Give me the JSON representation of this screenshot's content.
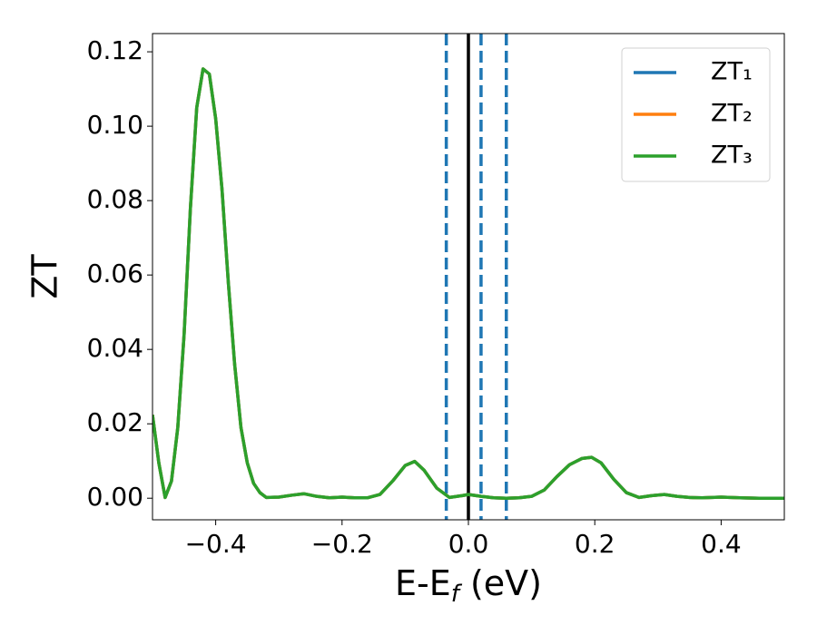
{
  "chart_data": {
    "type": "line",
    "xlabel": [
      "E-E",
      "f",
      " (eV)"
    ],
    "ylabel": "ZT",
    "xlim": [
      -0.5,
      0.5
    ],
    "ylim": [
      -0.0058,
      0.1249
    ],
    "xticks": [
      {
        "value": -0.4,
        "label": "−0.4"
      },
      {
        "value": -0.2,
        "label": "−0.2"
      },
      {
        "value": 0,
        "label": "0.0"
      },
      0.2,
      0.4
    ],
    "yticks": [
      {
        "value": 0,
        "label": "0.00"
      },
      0.02,
      0.04,
      0.06,
      0.08,
      {
        "value": 0.1,
        "label": "0.10"
      },
      0.12
    ],
    "x": [
      -0.5,
      -0.49,
      -0.48,
      -0.47,
      -0.46,
      -0.45,
      -0.44,
      -0.43,
      -0.42,
      -0.41,
      -0.4,
      -0.39,
      -0.38,
      -0.37,
      -0.36,
      -0.35,
      -0.34,
      -0.33,
      -0.32,
      -0.3,
      -0.28,
      -0.26,
      -0.24,
      -0.22,
      -0.2,
      -0.18,
      -0.16,
      -0.14,
      -0.12,
      -0.1,
      -0.085,
      -0.07,
      -0.05,
      -0.03,
      -0.01,
      0,
      0.02,
      0.04,
      0.06,
      0.08,
      0.1,
      0.12,
      0.14,
      0.16,
      0.18,
      0.195,
      0.21,
      0.23,
      0.25,
      0.27,
      0.29,
      0.31,
      0.33,
      0.35,
      0.37,
      0.4,
      0.43,
      0.46,
      0.5
    ],
    "series": [
      {
        "name": "ZT₁",
        "color": "#1f77b4",
        "values": [
          0.0224,
          0.0095,
          0.0002,
          0.0046,
          0.019,
          0.044,
          0.078,
          0.105,
          0.1154,
          0.114,
          0.102,
          0.083,
          0.058,
          0.036,
          0.019,
          0.0095,
          0.004,
          0.0015,
          0.0002,
          0.0003,
          0.0008,
          0.0012,
          0.0005,
          0.0001,
          0.0003,
          0.0001,
          0.0001,
          0.001,
          0.0046,
          0.0088,
          0.0099,
          0.0075,
          0.0027,
          0.0002,
          0.0007,
          0.001,
          0.0005,
          0.0001,
          0,
          0.0001,
          0.0005,
          0.0022,
          0.0058,
          0.009,
          0.0107,
          0.011,
          0.0095,
          0.0051,
          0.0015,
          0.0002,
          0.0007,
          0.001,
          0.0005,
          0.0002,
          0.0001,
          0.0003,
          0.0001,
          0,
          0
        ]
      },
      {
        "name": "ZT₂",
        "color": "#ff7f0e",
        "values": [
          0.0224,
          0.0095,
          0.0002,
          0.0046,
          0.019,
          0.044,
          0.078,
          0.105,
          0.1154,
          0.114,
          0.102,
          0.083,
          0.058,
          0.036,
          0.019,
          0.0095,
          0.004,
          0.0015,
          0.0002,
          0.0003,
          0.0008,
          0.0012,
          0.0005,
          0.0001,
          0.0003,
          0.0001,
          0.0001,
          0.001,
          0.0046,
          0.0088,
          0.0099,
          0.0075,
          0.0027,
          0.0002,
          0.0007,
          0.001,
          0.0005,
          0.0001,
          0,
          0.0001,
          0.0005,
          0.0022,
          0.0058,
          0.009,
          0.0107,
          0.011,
          0.0095,
          0.0051,
          0.0015,
          0.0002,
          0.0007,
          0.001,
          0.0005,
          0.0002,
          0.0001,
          0.0003,
          0.0001,
          0,
          0
        ]
      },
      {
        "name": "ZT₃",
        "color": "#2ca02c",
        "values": [
          0.0224,
          0.0095,
          0.0002,
          0.0046,
          0.019,
          0.044,
          0.078,
          0.105,
          0.1154,
          0.114,
          0.102,
          0.083,
          0.058,
          0.036,
          0.019,
          0.0095,
          0.004,
          0.0015,
          0.0002,
          0.0003,
          0.0008,
          0.0012,
          0.0005,
          0.0001,
          0.0003,
          0.0001,
          0.0001,
          0.001,
          0.0046,
          0.0088,
          0.0099,
          0.0075,
          0.0027,
          0.0002,
          0.0007,
          0.001,
          0.0005,
          0.0001,
          0,
          0.0001,
          0.0005,
          0.0022,
          0.0058,
          0.009,
          0.0107,
          0.011,
          0.0095,
          0.0051,
          0.0015,
          0.0002,
          0.0007,
          0.001,
          0.0005,
          0.0002,
          0.0001,
          0.0003,
          0.0001,
          0,
          0
        ]
      }
    ],
    "vlines": [
      {
        "x": -0.035,
        "color": "#1f77b4",
        "dashed": true
      },
      {
        "x": 0,
        "color": "#000000",
        "dashed": false
      },
      {
        "x": 0.02,
        "color": "#1f77b4",
        "dashed": true
      },
      {
        "x": 0.06,
        "color": "#1f77b4",
        "dashed": true
      }
    ],
    "legend": "upper right"
  }
}
